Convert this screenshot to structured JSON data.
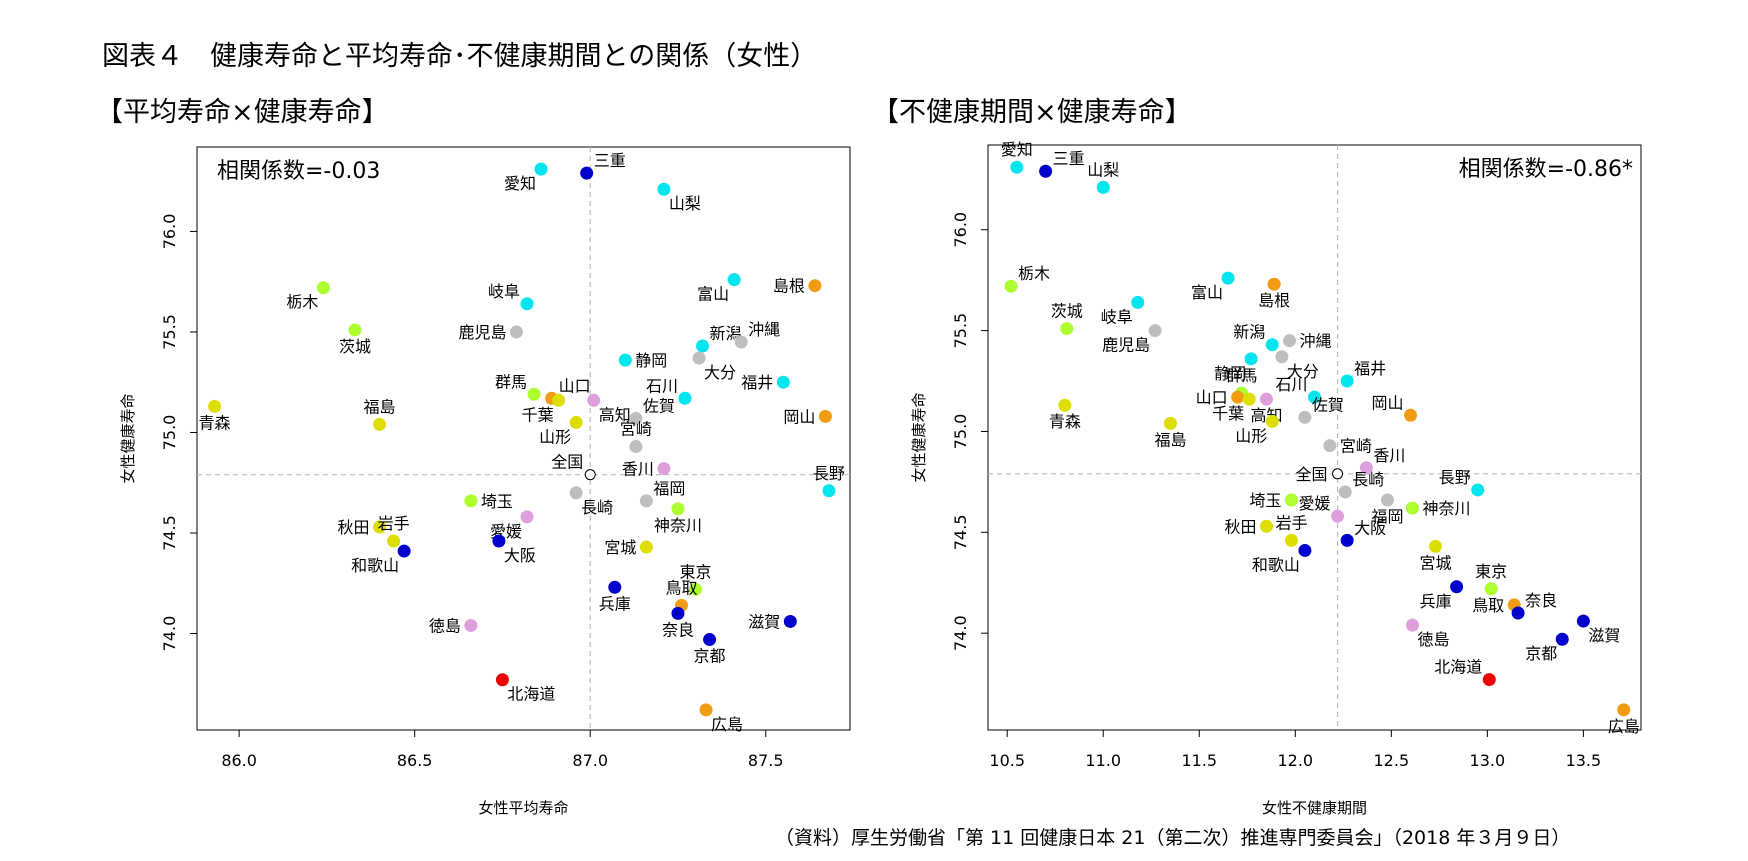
{
  "figure_title": "図表４　健康寿命と平均寿命･不健康期間との関係（女性）",
  "source_note": "（資料）厚生労働省「第 11 回健康日本 21（第二次）推進専門委員会」（2018 年３月９日）",
  "colors": {
    "cyan": "#00e5ee",
    "navy": "#0000cd",
    "green": "#adff2f",
    "yellow": "#dddd00",
    "gray": "#bebebe",
    "pink": "#dda0dd",
    "orange": "#f39c12",
    "red": "#ee0000",
    "white": "#ffffff"
  },
  "chart_data": [
    {
      "type": "scatter",
      "panel_title": "【平均寿命×健康寿命】",
      "annotation": "相関係数=-0.03",
      "annotation_position": "top-left",
      "xlabel": "女性平均寿命",
      "ylabel": "女性健康寿命",
      "xlim": [
        85.88,
        87.74
      ],
      "ylim": [
        73.52,
        76.42
      ],
      "xticks": [
        "86.0",
        "86.5",
        "87.0",
        "87.5"
      ],
      "yticks": [
        "74.0",
        "74.5",
        "75.0",
        "75.5",
        "76.0"
      ],
      "ref_lines": {
        "x": 87.0,
        "y": 74.79
      },
      "points": [
        {
          "name": "愛知",
          "x": 86.86,
          "y": 76.31,
          "color": "cyan",
          "label_pos": "below-left"
        },
        {
          "name": "三重",
          "x": 86.99,
          "y": 76.29,
          "color": "navy",
          "label_pos": "above-right"
        },
        {
          "name": "山梨",
          "x": 87.21,
          "y": 76.21,
          "color": "cyan",
          "label_pos": "below-right"
        },
        {
          "name": "栃木",
          "x": 86.24,
          "y": 75.72,
          "color": "green",
          "label_pos": "below-left"
        },
        {
          "name": "富山",
          "x": 87.41,
          "y": 75.76,
          "color": "cyan",
          "label_pos": "below-left"
        },
        {
          "name": "島根",
          "x": 87.64,
          "y": 75.73,
          "color": "orange",
          "label_pos": "left"
        },
        {
          "name": "岐阜",
          "x": 86.82,
          "y": 75.64,
          "color": "cyan",
          "label_pos": "above-left"
        },
        {
          "name": "茨城",
          "x": 86.33,
          "y": 75.51,
          "color": "green",
          "label_pos": "below"
        },
        {
          "name": "鹿児島",
          "x": 86.79,
          "y": 75.5,
          "color": "gray",
          "label_pos": "left"
        },
        {
          "name": "新潟",
          "x": 87.32,
          "y": 75.43,
          "color": "cyan",
          "label_pos": "above-right"
        },
        {
          "name": "沖縄",
          "x": 87.43,
          "y": 75.45,
          "color": "gray",
          "label_pos": "above-right"
        },
        {
          "name": "静岡",
          "x": 87.1,
          "y": 75.36,
          "color": "cyan",
          "label_pos": "right"
        },
        {
          "name": "大分",
          "x": 87.31,
          "y": 75.37,
          "color": "gray",
          "label_pos": "below-right"
        },
        {
          "name": "福井",
          "x": 87.55,
          "y": 75.25,
          "color": "cyan",
          "label_pos": "left"
        },
        {
          "name": "群馬",
          "x": 86.84,
          "y": 75.19,
          "color": "green",
          "label_pos": "above-left"
        },
        {
          "name": "山口",
          "x": 86.89,
          "y": 75.17,
          "color": "orange",
          "label_pos": "above-right"
        },
        {
          "name": "千葉",
          "x": 86.91,
          "y": 75.16,
          "color": "yellow",
          "label_pos": "below-left"
        },
        {
          "name": "石川",
          "x": 87.27,
          "y": 75.17,
          "color": "cyan",
          "label_pos": "above-left"
        },
        {
          "name": "高知",
          "x": 87.01,
          "y": 75.16,
          "color": "pink",
          "label_pos": "below-right"
        },
        {
          "name": "佐賀",
          "x": 87.13,
          "y": 75.07,
          "color": "gray",
          "label_pos": "above-right"
        },
        {
          "name": "青森",
          "x": 85.93,
          "y": 75.13,
          "color": "yellow",
          "label_pos": "below"
        },
        {
          "name": "福島",
          "x": 86.4,
          "y": 75.04,
          "color": "yellow",
          "label_pos": "above"
        },
        {
          "name": "岡山",
          "x": 87.67,
          "y": 75.08,
          "color": "orange",
          "label_pos": "left"
        },
        {
          "name": "山形",
          "x": 86.96,
          "y": 75.05,
          "color": "yellow",
          "label_pos": "below-left"
        },
        {
          "name": "宮崎",
          "x": 87.13,
          "y": 74.93,
          "color": "gray",
          "label_pos": "above"
        },
        {
          "name": "全国",
          "x": 87.0,
          "y": 74.79,
          "color": "white",
          "label_pos": "above-left"
        },
        {
          "name": "香川",
          "x": 87.21,
          "y": 74.82,
          "color": "pink",
          "label_pos": "left"
        },
        {
          "name": "長野",
          "x": 87.68,
          "y": 74.71,
          "color": "cyan",
          "label_pos": "above"
        },
        {
          "name": "長崎",
          "x": 86.96,
          "y": 74.7,
          "color": "gray",
          "label_pos": "below-right"
        },
        {
          "name": "福岡",
          "x": 87.16,
          "y": 74.66,
          "color": "gray",
          "label_pos": "above-right"
        },
        {
          "name": "神奈川",
          "x": 87.25,
          "y": 74.62,
          "color": "green",
          "label_pos": "below"
        },
        {
          "name": "埼玉",
          "x": 86.66,
          "y": 74.66,
          "color": "green",
          "label_pos": "right"
        },
        {
          "name": "愛媛",
          "x": 86.82,
          "y": 74.58,
          "color": "pink",
          "label_pos": "below-left"
        },
        {
          "name": "秋田",
          "x": 86.4,
          "y": 74.53,
          "color": "yellow",
          "label_pos": "left"
        },
        {
          "name": "岩手",
          "x": 86.44,
          "y": 74.46,
          "color": "yellow",
          "label_pos": "above"
        },
        {
          "name": "大阪",
          "x": 86.74,
          "y": 74.46,
          "color": "navy",
          "label_pos": "below-right"
        },
        {
          "name": "宮城",
          "x": 87.16,
          "y": 74.43,
          "color": "yellow",
          "label_pos": "left"
        },
        {
          "name": "和歌山",
          "x": 86.47,
          "y": 74.41,
          "color": "navy",
          "label_pos": "below-left"
        },
        {
          "name": "東京",
          "x": 87.3,
          "y": 74.22,
          "color": "green",
          "label_pos": "above"
        },
        {
          "name": "兵庫",
          "x": 87.07,
          "y": 74.23,
          "color": "navy",
          "label_pos": "below"
        },
        {
          "name": "鳥取",
          "x": 87.26,
          "y": 74.14,
          "color": "orange",
          "label_pos": "above"
        },
        {
          "name": "奈良",
          "x": 87.25,
          "y": 74.1,
          "color": "navy",
          "label_pos": "below"
        },
        {
          "name": "滋賀",
          "x": 87.57,
          "y": 74.06,
          "color": "navy",
          "label_pos": "left"
        },
        {
          "name": "徳島",
          "x": 86.66,
          "y": 74.04,
          "color": "pink",
          "label_pos": "left"
        },
        {
          "name": "京都",
          "x": 87.34,
          "y": 73.97,
          "color": "navy",
          "label_pos": "below"
        },
        {
          "name": "北海道",
          "x": 86.75,
          "y": 73.77,
          "color": "red",
          "label_pos": "below-right"
        },
        {
          "name": "広島",
          "x": 87.33,
          "y": 73.62,
          "color": "orange",
          "label_pos": "below-right"
        }
      ]
    },
    {
      "type": "scatter",
      "panel_title": "【不健康期間×健康寿命】",
      "annotation": "相関係数=-0.86*",
      "annotation_position": "top-right",
      "xlabel": "女性不健康期間",
      "ylabel": "女性健康寿命",
      "xlim": [
        10.4,
        13.8
      ],
      "ylim": [
        73.52,
        76.42
      ],
      "xticks": [
        "10.5",
        "11.0",
        "11.5",
        "12.0",
        "12.5",
        "13.0",
        "13.5"
      ],
      "yticks": [
        "74.0",
        "74.5",
        "75.0",
        "75.5",
        "76.0"
      ],
      "ref_lines": {
        "x": 12.22,
        "y": 74.79
      },
      "points": [
        {
          "name": "愛知",
          "x": 10.55,
          "y": 76.31,
          "color": "cyan",
          "label_pos": "above"
        },
        {
          "name": "三重",
          "x": 10.7,
          "y": 76.29,
          "color": "navy",
          "label_pos": "above-right"
        },
        {
          "name": "山梨",
          "x": 11.0,
          "y": 76.21,
          "color": "cyan",
          "label_pos": "above"
        },
        {
          "name": "栃木",
          "x": 10.52,
          "y": 75.72,
          "color": "green",
          "label_pos": "above-right"
        },
        {
          "name": "富山",
          "x": 11.65,
          "y": 75.76,
          "color": "cyan",
          "label_pos": "below-left"
        },
        {
          "name": "島根",
          "x": 11.89,
          "y": 75.73,
          "color": "orange",
          "label_pos": "below"
        },
        {
          "name": "岐阜",
          "x": 11.18,
          "y": 75.64,
          "color": "cyan",
          "label_pos": "below-left"
        },
        {
          "name": "茨城",
          "x": 10.81,
          "y": 75.51,
          "color": "green",
          "label_pos": "above"
        },
        {
          "name": "鹿児島",
          "x": 11.27,
          "y": 75.5,
          "color": "gray",
          "label_pos": "below-left"
        },
        {
          "name": "新潟",
          "x": 11.88,
          "y": 75.43,
          "color": "cyan",
          "label_pos": "above-left"
        },
        {
          "name": "沖縄",
          "x": 11.97,
          "y": 75.45,
          "color": "gray",
          "label_pos": "right"
        },
        {
          "name": "静岡",
          "x": 11.77,
          "y": 75.36,
          "color": "cyan",
          "label_pos": "below-left"
        },
        {
          "name": "大分",
          "x": 11.93,
          "y": 75.37,
          "color": "gray",
          "label_pos": "below-right"
        },
        {
          "name": "福井",
          "x": 12.27,
          "y": 75.25,
          "color": "cyan",
          "label_pos": "above-right"
        },
        {
          "name": "群馬",
          "x": 11.72,
          "y": 75.19,
          "color": "green",
          "label_pos": "above"
        },
        {
          "name": "山口",
          "x": 11.7,
          "y": 75.17,
          "color": "orange",
          "label_pos": "left"
        },
        {
          "name": "千葉",
          "x": 11.76,
          "y": 75.16,
          "color": "yellow",
          "label_pos": "below-left"
        },
        {
          "name": "石川",
          "x": 12.1,
          "y": 75.17,
          "color": "cyan",
          "label_pos": "above-left"
        },
        {
          "name": "高知",
          "x": 11.85,
          "y": 75.16,
          "color": "pink",
          "label_pos": "below"
        },
        {
          "name": "佐賀",
          "x": 12.05,
          "y": 75.07,
          "color": "gray",
          "label_pos": "above-right"
        },
        {
          "name": "青森",
          "x": 10.8,
          "y": 75.13,
          "color": "yellow",
          "label_pos": "below"
        },
        {
          "name": "福島",
          "x": 11.35,
          "y": 75.04,
          "color": "yellow",
          "label_pos": "below"
        },
        {
          "name": "岡山",
          "x": 12.6,
          "y": 75.08,
          "color": "orange",
          "label_pos": "above-left"
        },
        {
          "name": "山形",
          "x": 11.88,
          "y": 75.05,
          "color": "yellow",
          "label_pos": "below-left"
        },
        {
          "name": "宮崎",
          "x": 12.18,
          "y": 74.93,
          "color": "gray",
          "label_pos": "right"
        },
        {
          "name": "全国",
          "x": 12.22,
          "y": 74.79,
          "color": "white",
          "label_pos": "left"
        },
        {
          "name": "香川",
          "x": 12.37,
          "y": 74.82,
          "color": "pink",
          "label_pos": "above-right"
        },
        {
          "name": "長野",
          "x": 12.95,
          "y": 74.71,
          "color": "cyan",
          "label_pos": "above-left"
        },
        {
          "name": "長崎",
          "x": 12.26,
          "y": 74.7,
          "color": "gray",
          "label_pos": "above-right"
        },
        {
          "name": "福岡",
          "x": 12.48,
          "y": 74.66,
          "color": "gray",
          "label_pos": "below"
        },
        {
          "name": "神奈川",
          "x": 12.61,
          "y": 74.62,
          "color": "green",
          "label_pos": "right"
        },
        {
          "name": "埼玉",
          "x": 11.98,
          "y": 74.66,
          "color": "green",
          "label_pos": "left"
        },
        {
          "name": "愛媛",
          "x": 12.22,
          "y": 74.58,
          "color": "pink",
          "label_pos": "above-left"
        },
        {
          "name": "秋田",
          "x": 11.85,
          "y": 74.53,
          "color": "yellow",
          "label_pos": "left"
        },
        {
          "name": "岩手",
          "x": 11.98,
          "y": 74.46,
          "color": "yellow",
          "label_pos": "above"
        },
        {
          "name": "大阪",
          "x": 12.27,
          "y": 74.46,
          "color": "navy",
          "label_pos": "above-right"
        },
        {
          "name": "宮城",
          "x": 12.73,
          "y": 74.43,
          "color": "yellow",
          "label_pos": "below"
        },
        {
          "name": "和歌山",
          "x": 12.05,
          "y": 74.41,
          "color": "navy",
          "label_pos": "below-left"
        },
        {
          "name": "東京",
          "x": 13.02,
          "y": 74.22,
          "color": "green",
          "label_pos": "above"
        },
        {
          "name": "兵庫",
          "x": 12.84,
          "y": 74.23,
          "color": "navy",
          "label_pos": "below-left"
        },
        {
          "name": "鳥取",
          "x": 13.14,
          "y": 74.14,
          "color": "orange",
          "label_pos": "left"
        },
        {
          "name": "奈良",
          "x": 13.16,
          "y": 74.1,
          "color": "navy",
          "label_pos": "above-right"
        },
        {
          "name": "滋賀",
          "x": 13.5,
          "y": 74.06,
          "color": "navy",
          "label_pos": "below-right"
        },
        {
          "name": "徳島",
          "x": 12.61,
          "y": 74.04,
          "color": "pink",
          "label_pos": "below-right"
        },
        {
          "name": "京都",
          "x": 13.39,
          "y": 73.97,
          "color": "navy",
          "label_pos": "below-left"
        },
        {
          "name": "北海道",
          "x": 13.01,
          "y": 73.77,
          "color": "red",
          "label_pos": "above-left"
        },
        {
          "name": "広島",
          "x": 13.71,
          "y": 73.62,
          "color": "orange",
          "label_pos": "below"
        }
      ]
    }
  ]
}
